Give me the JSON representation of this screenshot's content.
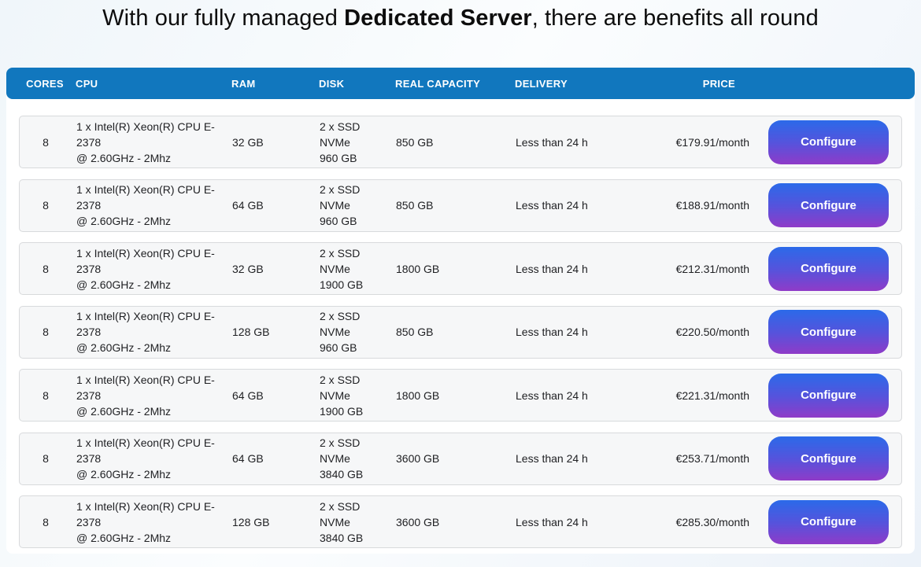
{
  "title": {
    "prefix": "With our fully managed ",
    "highlight": "Dedicated Server",
    "suffix": ", there are benefits all round"
  },
  "table": {
    "headers": {
      "cores": "CORES",
      "cpu": "CPU",
      "ram": "RAM",
      "disk": "DISK",
      "real_capacity": "REAL CAPACITY",
      "delivery": "DELIVERY",
      "price": "PRICE"
    },
    "configure_label": "Configure",
    "rows": [
      {
        "cores": "8",
        "cpu_line1": "1 x Intel(R) Xeon(R) CPU E-2378",
        "cpu_line2": "@ 2.60GHz - 2Mhz",
        "ram": "32 GB",
        "disk_line1": "2 x SSD NVMe",
        "disk_line2": "960 GB",
        "capacity": "850 GB",
        "delivery": "Less than 24 h",
        "price": "€179.91/month"
      },
      {
        "cores": "8",
        "cpu_line1": "1 x Intel(R) Xeon(R) CPU E-2378",
        "cpu_line2": "@ 2.60GHz - 2Mhz",
        "ram": "64 GB",
        "disk_line1": "2 x SSD NVMe",
        "disk_line2": "960 GB",
        "capacity": "850 GB",
        "delivery": "Less than 24 h",
        "price": "€188.91/month"
      },
      {
        "cores": "8",
        "cpu_line1": "1 x Intel(R) Xeon(R) CPU E-2378",
        "cpu_line2": "@ 2.60GHz - 2Mhz",
        "ram": "32 GB",
        "disk_line1": "2 x SSD NVMe",
        "disk_line2": "1900 GB",
        "capacity": "1800 GB",
        "delivery": "Less than 24 h",
        "price": "€212.31/month"
      },
      {
        "cores": "8",
        "cpu_line1": "1 x Intel(R) Xeon(R) CPU E-2378",
        "cpu_line2": "@ 2.60GHz - 2Mhz",
        "ram": "128 GB",
        "disk_line1": "2 x SSD NVMe",
        "disk_line2": "960 GB",
        "capacity": "850 GB",
        "delivery": "Less than 24 h",
        "price": "€220.50/month"
      },
      {
        "cores": "8",
        "cpu_line1": "1 x Intel(R) Xeon(R) CPU E-2378",
        "cpu_line2": "@ 2.60GHz - 2Mhz",
        "ram": "64 GB",
        "disk_line1": "2 x SSD NVMe",
        "disk_line2": "1900 GB",
        "capacity": "1800 GB",
        "delivery": "Less than 24 h",
        "price": "€221.31/month"
      },
      {
        "cores": "8",
        "cpu_line1": "1 x Intel(R) Xeon(R) CPU E-2378",
        "cpu_line2": "@ 2.60GHz - 2Mhz",
        "ram": "64 GB",
        "disk_line1": "2 x SSD NVMe",
        "disk_line2": "3840 GB",
        "capacity": "3600 GB",
        "delivery": "Less than 24 h",
        "price": "€253.71/month"
      },
      {
        "cores": "8",
        "cpu_line1": "1 x Intel(R) Xeon(R) CPU E-2378",
        "cpu_line2": "@ 2.60GHz - 2Mhz",
        "ram": "128 GB",
        "disk_line1": "2 x SSD NVMe",
        "disk_line2": "3840 GB",
        "capacity": "3600 GB",
        "delivery": "Less than 24 h",
        "price": "€285.30/month"
      }
    ]
  },
  "colors": {
    "header_bg": "#1177be",
    "button_gradient_start": "#2b6ae9",
    "button_gradient_end": "#8f3bc8"
  }
}
